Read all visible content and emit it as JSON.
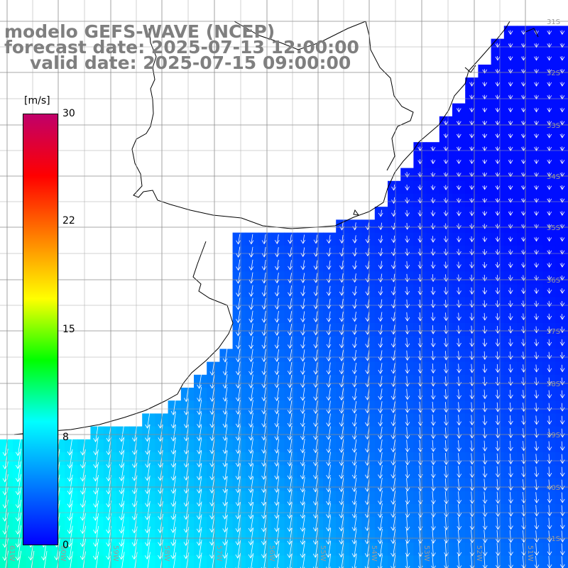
{
  "title": {
    "line1": "modelo GEFS-WAVE (NCEP)",
    "line2": "forecast date: 2025-07-13 12:00:00",
    "line3": "valid date: 2025-07-15 09:00:00"
  },
  "colorbar": {
    "unit": "[m/s]",
    "ticks": [
      "30",
      "22",
      "15",
      "8",
      "0"
    ],
    "tick_values": [
      30,
      22,
      15,
      8,
      0
    ],
    "min": 0,
    "max": 30,
    "colors": [
      "#0000ff",
      "#0080ff",
      "#00ffff",
      "#00ff00",
      "#ffff00",
      "#ff8000",
      "#ff0000",
      "#c0006a"
    ]
  },
  "axes": {
    "lat_labels": [
      "31S",
      "32S",
      "33S",
      "34S",
      "35S",
      "36S",
      "37S",
      "38S",
      "39S",
      "40S",
      "41S"
    ],
    "lon_labels": [
      "61W",
      "60W",
      "59W",
      "58W",
      "57W",
      "56W",
      "55W",
      "54W",
      "53W",
      "52W",
      "51W"
    ]
  },
  "colors": {
    "land": "#ffffff",
    "grid": "#888888",
    "coast": "#000000",
    "arrow": "#ffffff"
  }
}
